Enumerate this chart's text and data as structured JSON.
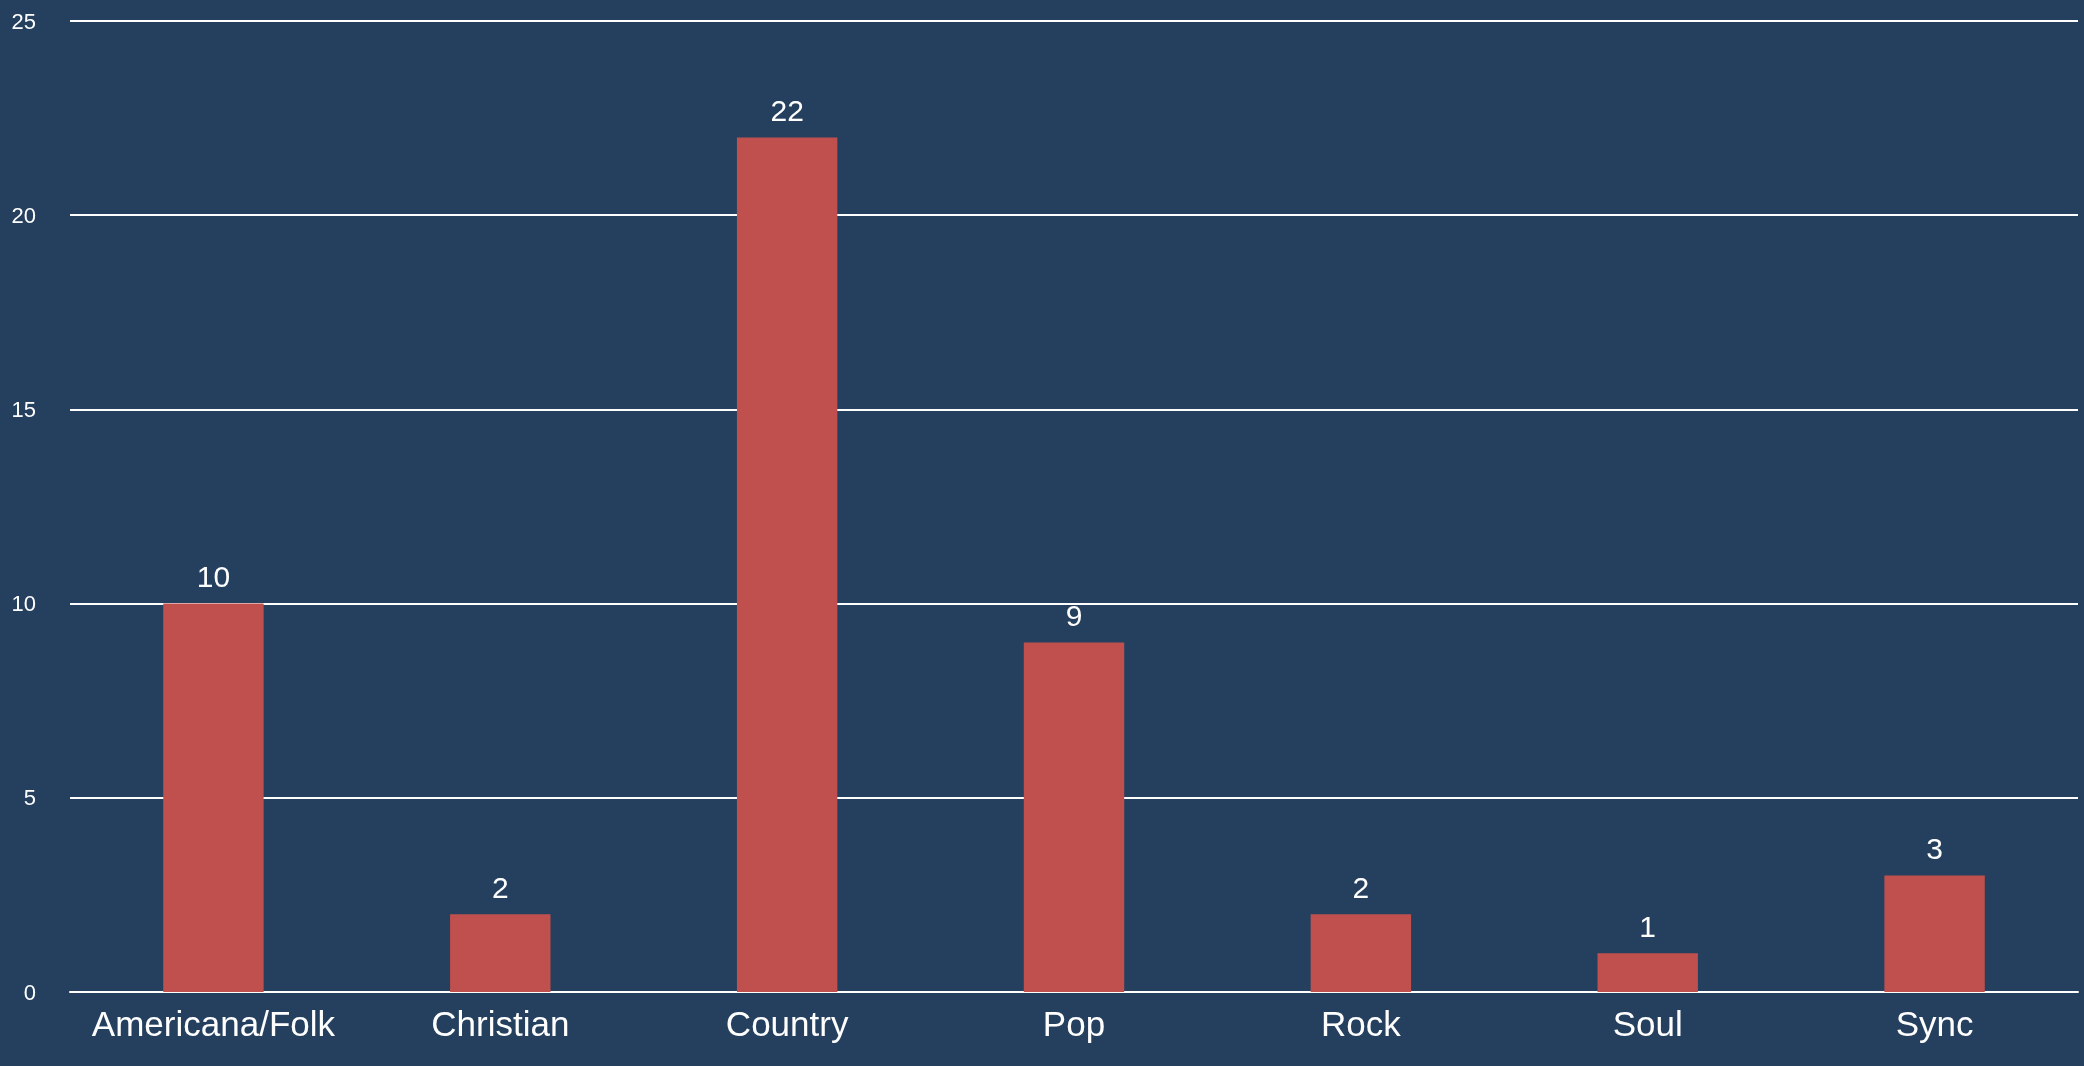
{
  "chart_data": {
    "type": "bar",
    "categories": [
      "Americana/Folk",
      "Christian",
      "Country",
      "Pop",
      "Rock",
      "Soul",
      "Sync"
    ],
    "values": [
      10,
      2,
      22,
      9,
      2,
      1,
      3
    ],
    "color": "#c0504d",
    "ylim": [
      0,
      25
    ],
    "yticks": [
      0,
      5,
      10,
      15,
      20,
      25
    ],
    "grid": "y",
    "data_labels": true
  }
}
